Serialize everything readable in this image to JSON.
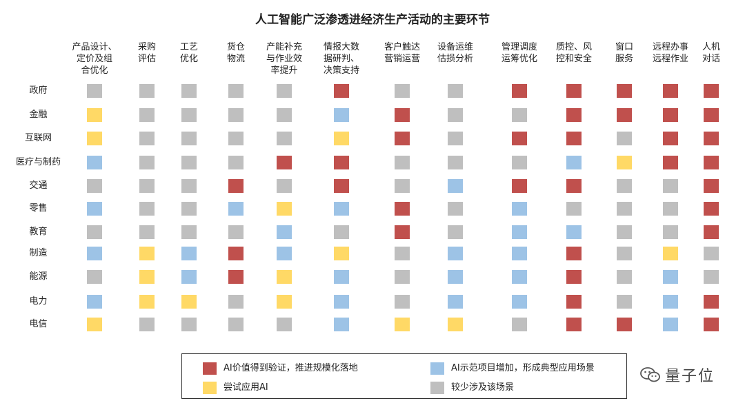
{
  "chart_data": {
    "type": "heatmap",
    "title": "人工智能广泛渗透进经济生产活动的主要环节",
    "columns": [
      "产品设计、\n定价及组\n合优化",
      "采购\n评估",
      "工艺\n优化",
      "货仓\n物流",
      "产能补充\n与作业效\n率提升",
      "情报大数\n据研判、\n决策支持",
      "客户触达\n营销运营",
      "设备运维\n估损分析",
      "管理调度\n运筹优化",
      "质控、风\n控和安全",
      "窗口\n服务",
      "远程办事\n远程作业",
      "人机\n对话"
    ],
    "rows": [
      "政府",
      "金融",
      "互联网",
      "医疗与制药",
      "交通",
      "零售",
      "教育",
      "制造",
      "能源",
      "电力",
      "电信"
    ],
    "values": [
      [
        "G",
        "G",
        "G",
        "G",
        "G",
        "R",
        "G",
        "G",
        "R",
        "R",
        "R",
        "R",
        "R"
      ],
      [
        "Y",
        "G",
        "G",
        "G",
        "G",
        "B",
        "R",
        "G",
        "G",
        "R",
        "R",
        "R",
        "R"
      ],
      [
        "Y",
        "G",
        "G",
        "G",
        "G",
        "Y",
        "R",
        "G",
        "R",
        "R",
        "G",
        "R",
        "R"
      ],
      [
        "B",
        "G",
        "G",
        "G",
        "R",
        "R",
        "G",
        "G",
        "G",
        "B",
        "Y",
        "R",
        "R"
      ],
      [
        "G",
        "G",
        "G",
        "R",
        "G",
        "R",
        "G",
        "B",
        "R",
        "R",
        "G",
        "G",
        "R"
      ],
      [
        "B",
        "G",
        "G",
        "B",
        "Y",
        "B",
        "R",
        "G",
        "B",
        "G",
        "G",
        "G",
        "R"
      ],
      [
        "G",
        "G",
        "G",
        "G",
        "B",
        "G",
        "R",
        "G",
        "B",
        "B",
        "G",
        "G",
        "R"
      ],
      [
        "B",
        "Y",
        "B",
        "R",
        "B",
        "Y",
        "G",
        "B",
        "B",
        "R",
        "G",
        "Y",
        "G"
      ],
      [
        "G",
        "Y",
        "B",
        "R",
        "Y",
        "B",
        "G",
        "B",
        "B",
        "R",
        "G",
        "B",
        "G"
      ],
      [
        "B",
        "Y",
        "Y",
        "G",
        "Y",
        "B",
        "G",
        "B",
        "B",
        "R",
        "G",
        "B",
        "R"
      ],
      [
        "Y",
        "G",
        "G",
        "G",
        "G",
        "B",
        "Y",
        "Y",
        "G",
        "R",
        "R",
        "B",
        "R"
      ]
    ],
    "colors": {
      "R": "#c0504d",
      "B": "#9dc3e6",
      "Y": "#ffd966",
      "G": "#bfbfbf"
    },
    "legend": [
      {
        "key": "R",
        "label": "AI价值得到验证，推进规模化落地"
      },
      {
        "key": "B",
        "label": "AI示范项目增加，形成典型应用场景"
      },
      {
        "key": "Y",
        "label": "尝试应用AI"
      },
      {
        "key": "G",
        "label": "较少涉及该场景"
      }
    ],
    "legend_placement": "bottom"
  },
  "watermark": {
    "text": "量子位",
    "icon": "wechat-icon"
  }
}
